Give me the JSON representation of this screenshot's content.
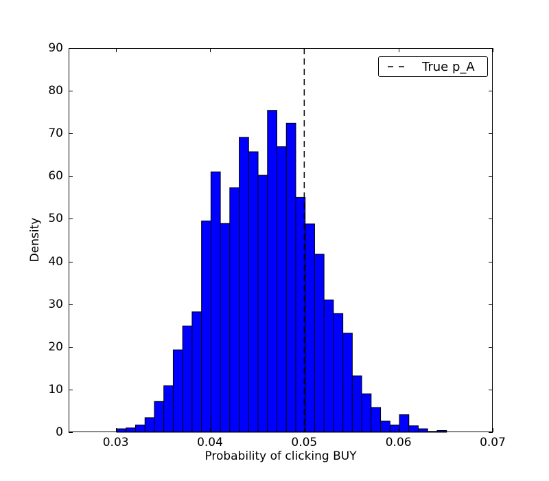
{
  "colors": {
    "background": "#ffffff",
    "foreground": "#000000"
  },
  "chart_data": {
    "type": "bar",
    "subtype": "histogram",
    "title": "",
    "xlabel": "Probability of clicking BUY",
    "ylabel": "Density",
    "xlim": [
      0.025,
      0.07
    ],
    "ylim": [
      0,
      90
    ],
    "grid": false,
    "x_ticks": [
      {
        "value": 0.03,
        "label": "0.03"
      },
      {
        "value": 0.04,
        "label": "0.04"
      },
      {
        "value": 0.05,
        "label": "0.05"
      },
      {
        "value": 0.06,
        "label": "0.06"
      },
      {
        "value": 0.07,
        "label": "0.07"
      }
    ],
    "y_ticks": [
      {
        "value": 0,
        "label": "0"
      },
      {
        "value": 10,
        "label": "10"
      },
      {
        "value": 20,
        "label": "20"
      },
      {
        "value": 30,
        "label": "30"
      },
      {
        "value": 40,
        "label": "40"
      },
      {
        "value": 50,
        "label": "50"
      },
      {
        "value": 60,
        "label": "60"
      },
      {
        "value": 70,
        "label": "70"
      },
      {
        "value": 80,
        "label": "80"
      },
      {
        "value": 90,
        "label": "90"
      }
    ],
    "bars": {
      "color": "#0000ff",
      "edge_color": "#000000",
      "bin_start": 0.0301,
      "bin_width": 0.001,
      "heights": [
        0.8,
        1.0,
        1.7,
        3.4,
        7.2,
        10.9,
        19.3,
        24.9,
        28.2,
        49.5,
        61.0,
        48.9,
        57.3,
        69.1,
        65.7,
        60.2,
        75.4,
        66.9,
        72.4,
        55.0,
        48.8,
        41.7,
        31.0,
        27.8,
        23.2,
        13.2,
        9.0,
        5.8,
        2.6,
        1.7,
        4.1,
        1.5,
        0.8,
        0.2,
        0.4
      ]
    },
    "vline": {
      "x": 0.05,
      "color": "#000000",
      "style": "dashed",
      "line_width": 1.5
    },
    "legend": {
      "position": "upper-right",
      "entries": [
        {
          "label": "True p_A",
          "line_style": "dashed",
          "color": "#000000"
        }
      ]
    }
  }
}
